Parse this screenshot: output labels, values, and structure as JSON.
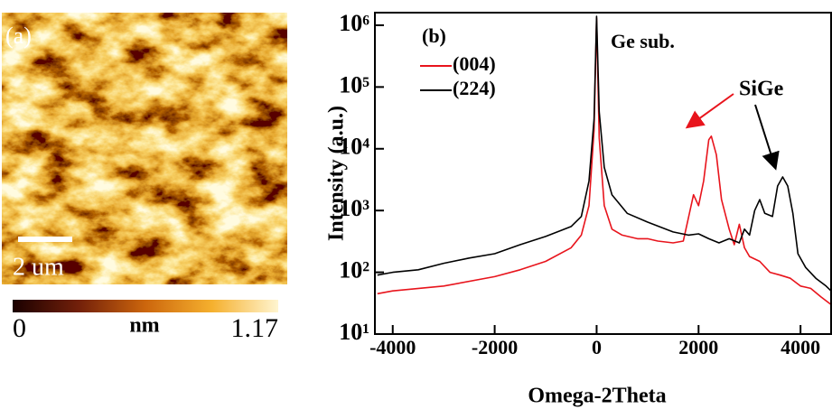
{
  "chart_data": [
    {
      "type": "image",
      "panel_label": "(a)",
      "scale_bar": "2 um",
      "colorbar": {
        "min": 0,
        "max": 1.17,
        "unit": "nm"
      }
    },
    {
      "type": "line",
      "panel_label": "(b)",
      "x_label": "Omega-2Theta",
      "y_label": "Intensity (a.u.)",
      "yscale": "log",
      "xlim": [
        -4350,
        4600
      ],
      "ylim": [
        10,
        1600000
      ],
      "xticks": [
        -4000,
        -2000,
        0,
        2000,
        4000
      ],
      "yticks": [
        {
          "value": 10,
          "label": "10¹"
        },
        {
          "value": 100,
          "label": "10²"
        },
        {
          "value": 1000,
          "label": "10³"
        },
        {
          "value": 10000,
          "label": "10⁴"
        },
        {
          "value": 100000,
          "label": "10⁵"
        },
        {
          "value": 1000000,
          "label": "10⁶"
        }
      ],
      "annotations": [
        "Ge sub.",
        "SiGe"
      ],
      "legend": "upper left",
      "series": [
        {
          "name": "(004)",
          "color": "#e8141c",
          "x": [
            -4300,
            -4000,
            -3000,
            -2000,
            -1500,
            -1000,
            -500,
            -300,
            -150,
            -50,
            0,
            50,
            150,
            300,
            500,
            800,
            1000,
            1200,
            1500,
            1700,
            1900,
            2000,
            2100,
            2200,
            2250,
            2350,
            2450,
            2600,
            2700,
            2800,
            2900,
            3000,
            3200,
            3400,
            3600,
            3800,
            4000,
            4200,
            4400,
            4600
          ],
          "values": [
            45,
            50,
            60,
            85,
            110,
            150,
            250,
            400,
            1200,
            20000,
            1300000,
            15000,
            1200,
            500,
            400,
            350,
            350,
            320,
            300,
            320,
            1800,
            1200,
            3000,
            14000,
            16000,
            8000,
            1500,
            500,
            280,
            600,
            250,
            180,
            150,
            100,
            90,
            80,
            60,
            55,
            40,
            30
          ]
        },
        {
          "name": "(224)",
          "color": "#000000",
          "x": [
            -4300,
            -4000,
            -3500,
            -3000,
            -2500,
            -2000,
            -1500,
            -1000,
            -500,
            -300,
            -150,
            -50,
            0,
            50,
            150,
            300,
            600,
            1000,
            1500,
            1800,
            2000,
            2200,
            2400,
            2600,
            2800,
            2900,
            3000,
            3100,
            3200,
            3300,
            3450,
            3550,
            3650,
            3750,
            3850,
            3950,
            4100,
            4300,
            4500,
            4600
          ],
          "values": [
            90,
            100,
            110,
            140,
            170,
            200,
            280,
            380,
            550,
            800,
            3000,
            30000,
            1400000,
            40000,
            5000,
            1800,
            900,
            650,
            450,
            400,
            420,
            350,
            300,
            350,
            300,
            500,
            400,
            1000,
            1500,
            900,
            800,
            2500,
            3500,
            2500,
            900,
            200,
            120,
            80,
            60,
            50
          ]
        }
      ]
    }
  ]
}
